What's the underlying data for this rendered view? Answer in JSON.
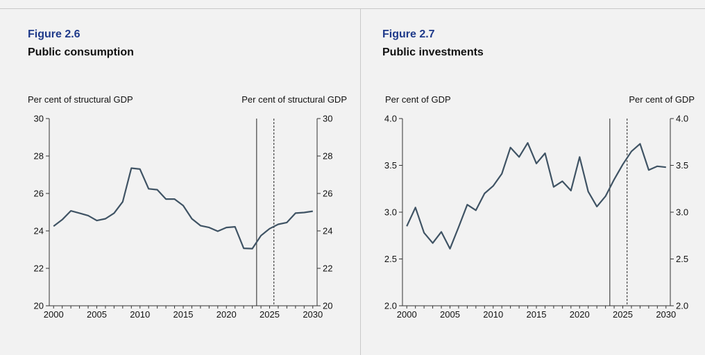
{
  "chart_data": [
    {
      "type": "line",
      "figure_number": "Figure 2.6",
      "title": "Public consumption",
      "ylabel_left": "Per cent of structural GDP",
      "ylabel_right": "Per cent of structural GDP",
      "xlim": [
        1999.5,
        2030.5
      ],
      "ylim": [
        20,
        30
      ],
      "x_ticks": [
        2000,
        2005,
        2010,
        2015,
        2020,
        2025,
        2030
      ],
      "y_ticks": [
        20,
        22,
        24,
        26,
        28,
        30
      ],
      "y_tick_labels": [
        "20",
        "22",
        "24",
        "26",
        "28",
        "30"
      ],
      "vlines": [
        {
          "x": 2023.5,
          "style": "solid"
        },
        {
          "x": 2025.5,
          "style": "dashed"
        }
      ],
      "grid": false,
      "series": [
        {
          "color": "#3f5364",
          "x": [
            2000,
            2001,
            2002,
            2003,
            2004,
            2005,
            2006,
            2007,
            2008,
            2009,
            2010,
            2011,
            2012,
            2013,
            2014,
            2015,
            2016,
            2017,
            2018,
            2019,
            2020,
            2021,
            2022,
            2023,
            2024,
            2025,
            2026,
            2027,
            2028,
            2029,
            2030
          ],
          "values": [
            24.25,
            24.6,
            25.07,
            24.95,
            24.82,
            24.55,
            24.65,
            24.95,
            25.55,
            27.35,
            27.3,
            26.25,
            26.2,
            25.7,
            25.7,
            25.35,
            24.65,
            24.28,
            24.18,
            23.98,
            24.18,
            24.22,
            23.07,
            23.05,
            23.75,
            24.12,
            24.35,
            24.45,
            24.95,
            24.98,
            25.05
          ]
        }
      ]
    },
    {
      "type": "line",
      "figure_number": "Figure 2.7",
      "title": "Public investments",
      "ylabel_left": "Per cent of GDP",
      "ylabel_right": "Per cent of  GDP",
      "xlim": [
        1999.5,
        2030.5
      ],
      "ylim": [
        2.0,
        4.0
      ],
      "x_ticks": [
        2000,
        2005,
        2010,
        2015,
        2020,
        2025,
        2030
      ],
      "y_ticks": [
        2.0,
        2.5,
        3.0,
        3.5,
        4.0
      ],
      "y_tick_labels": [
        "2.0",
        "2.5",
        "3.0",
        "3.5",
        "4.0"
      ],
      "vlines": [
        {
          "x": 2023.5,
          "style": "solid"
        },
        {
          "x": 2025.5,
          "style": "dashed"
        }
      ],
      "grid": false,
      "series": [
        {
          "color": "#3f5364",
          "x": [
            2000,
            2001,
            2002,
            2003,
            2004,
            2005,
            2006,
            2007,
            2008,
            2009,
            2010,
            2011,
            2012,
            2013,
            2014,
            2015,
            2016,
            2017,
            2018,
            2019,
            2020,
            2021,
            2022,
            2023,
            2024,
            2025,
            2026,
            2027,
            2028,
            2029,
            2030
          ],
          "values": [
            2.85,
            3.05,
            2.78,
            2.67,
            2.79,
            2.61,
            2.84,
            3.08,
            3.02,
            3.2,
            3.28,
            3.41,
            3.69,
            3.59,
            3.74,
            3.52,
            3.63,
            3.27,
            3.33,
            3.23,
            3.59,
            3.22,
            3.06,
            3.17,
            3.35,
            3.51,
            3.65,
            3.73,
            3.45,
            3.49,
            3.48
          ]
        }
      ]
    }
  ]
}
